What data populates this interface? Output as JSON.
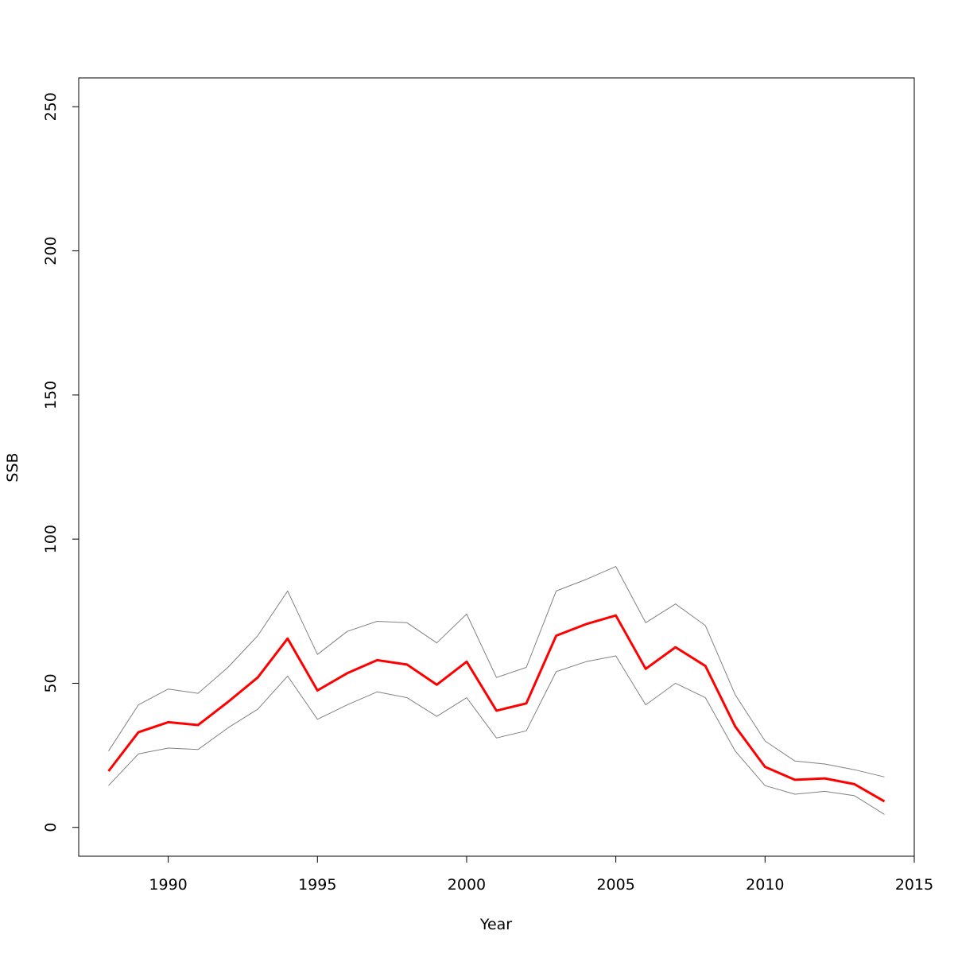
{
  "chart_data": {
    "type": "line",
    "title": "",
    "xlabel": "Year",
    "ylabel": "SSB",
    "xlim": [
      1987,
      2015
    ],
    "ylim": [
      -10,
      260
    ],
    "x_ticks": [
      1990,
      1995,
      2000,
      2005,
      2010,
      2015
    ],
    "y_ticks": [
      0,
      50,
      100,
      150,
      200,
      250
    ],
    "grid": false,
    "x": [
      1988,
      1989,
      1990,
      1991,
      1992,
      1993,
      1994,
      1995,
      1996,
      1997,
      1998,
      1999,
      2000,
      2001,
      2002,
      2003,
      2004,
      2005,
      2006,
      2007,
      2008,
      2009,
      2010,
      2011,
      2012,
      2013,
      2014
    ],
    "series": [
      {
        "color": "#ff0000",
        "values": [
          19.5,
          33,
          36.5,
          35.5,
          43.5,
          52,
          65.5,
          47.5,
          53.5,
          58,
          56.5,
          49.5,
          57.5,
          40.5,
          43,
          66.5,
          70.5,
          73.5,
          55,
          62.5,
          56,
          35,
          21,
          16.5,
          17,
          15,
          9
        ]
      },
      {
        "color": "#808080",
        "values": [
          26.5,
          42.5,
          48,
          46.5,
          55.5,
          66.5,
          82,
          60,
          68,
          71.5,
          71,
          64,
          74,
          52,
          55.5,
          82,
          86,
          90.5,
          71,
          77.5,
          70,
          46,
          30,
          23,
          22,
          20,
          17.5
        ]
      },
      {
        "color": "#808080",
        "values": [
          14.5,
          25.5,
          27.5,
          27,
          34.5,
          41,
          52.5,
          37.5,
          42.5,
          47,
          45,
          38.5,
          45,
          31,
          33.5,
          54,
          57.5,
          59.5,
          42.5,
          50,
          45,
          26.5,
          14.5,
          11.5,
          12.5,
          11,
          4.5
        ]
      }
    ]
  }
}
